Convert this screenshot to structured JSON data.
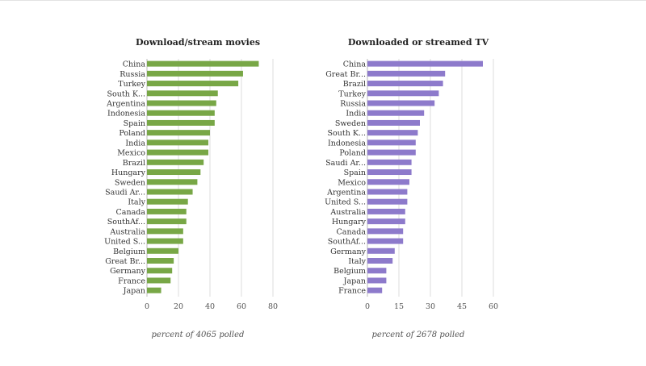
{
  "chart_data": [
    {
      "type": "bar",
      "orientation": "horizontal",
      "title": "Download/stream movies",
      "xlabel": "percent of 4065 polled",
      "categories": [
        "China",
        "Russia",
        "Turkey",
        "South K...",
        "Argentina",
        "Indonesia",
        "Spain",
        "Poland",
        "India",
        "Mexico",
        "Brazil",
        "Hungary",
        "Sweden",
        "Saudi Ar...",
        "Italy",
        "Canada",
        "SouthAf...",
        "Australia",
        "United S...",
        "Belgium",
        "Great Br...",
        "Germany",
        "France",
        "Japan"
      ],
      "values": [
        71,
        61,
        58,
        45,
        44,
        43,
        43,
        40,
        39,
        39,
        36,
        34,
        32,
        29,
        26,
        25,
        25,
        23,
        23,
        20,
        17,
        16,
        15,
        9
      ],
      "xlim": [
        0,
        80
      ],
      "xticks": [
        "0",
        "20",
        "40",
        "60",
        "80"
      ],
      "xtick_values": [
        0,
        20,
        40,
        60,
        80
      ],
      "grid": true,
      "color": "#78a746"
    },
    {
      "type": "bar",
      "orientation": "horizontal",
      "title": "Downloaded or streamed TV",
      "xlabel": "percent of 2678 polled",
      "categories": [
        "China",
        "Great Br...",
        "Brazil",
        "Turkey",
        "Russia",
        "India",
        "Sweden",
        "South K...",
        "Indonesia",
        "Poland",
        "Saudi Ar...",
        "Spain",
        "Mexico",
        "Argentina",
        "United S...",
        "Australia",
        "Hungary",
        "Canada",
        "SouthAf...",
        "Germany",
        "Italy",
        "Belgium",
        "Japan",
        "France"
      ],
      "values": [
        55,
        37,
        36,
        34,
        32,
        27,
        25,
        24,
        23,
        23,
        21,
        21,
        20,
        19,
        19,
        18,
        18,
        17,
        17,
        13,
        12,
        9,
        9,
        7
      ],
      "xlim": [
        0,
        60
      ],
      "xticks": [
        "0",
        "15",
        "30",
        "45",
        "60"
      ],
      "xtick_values": [
        0,
        15,
        30,
        45,
        60
      ],
      "grid": true,
      "color": "#8d7acb"
    }
  ]
}
